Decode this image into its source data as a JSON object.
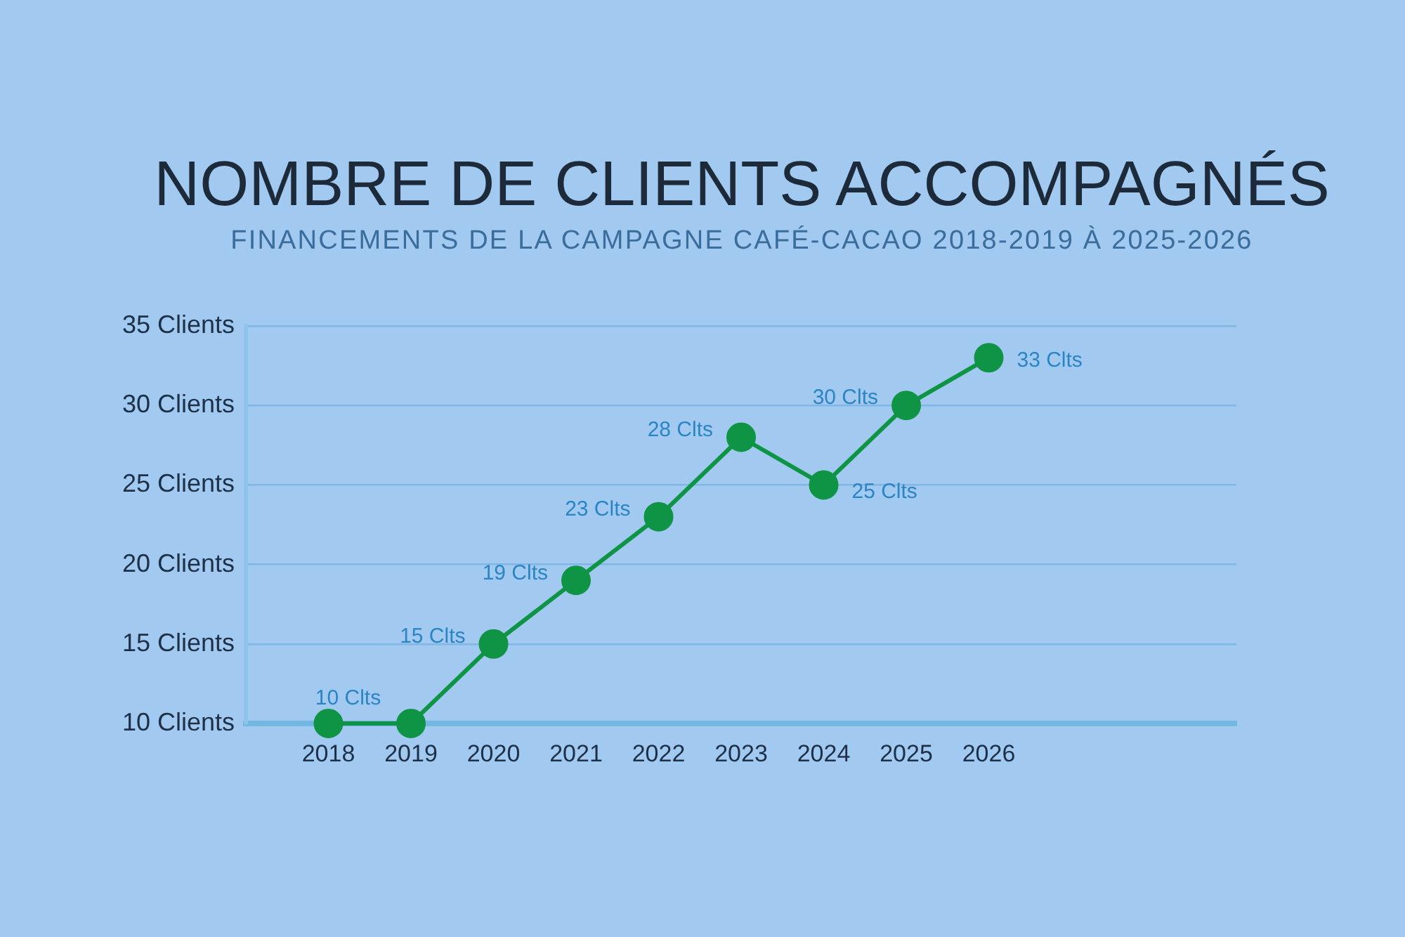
{
  "chart_data": {
    "type": "line",
    "title": "NOMBRE DE CLIENTS ACCOMPAGNÉS",
    "subtitle": "FINANCEMENTS DE LA CAMPAGNE CAFÉ-CACAO 2018-2019 À 2025-2026",
    "x": [
      2018,
      2019,
      2020,
      2021,
      2022,
      2023,
      2024,
      2025,
      2026
    ],
    "series": [
      {
        "color": "#0f9445",
        "values": [
          10,
          10,
          15,
          19,
          23,
          28,
          25,
          30,
          33
        ],
        "value_labels": [
          "10 Clts",
          null,
          "15 Clts",
          "19 Clts",
          "23 Clts",
          "28 Clts",
          "25 Clts",
          "30 Clts",
          "33 Clts"
        ]
      }
    ],
    "xlim": [
      2017,
      2029
    ],
    "xticks": [
      2018,
      2019,
      2020,
      2021,
      2022,
      2023,
      2024,
      2025,
      2026
    ],
    "ylim": [
      10,
      35
    ],
    "yticks": [
      {
        "value": 10,
        "label": "10 Clients"
      },
      {
        "value": 15,
        "label": "15 Clients"
      },
      {
        "value": 20,
        "label": "20 Clients"
      },
      {
        "value": 25,
        "label": "25 Clients"
      },
      {
        "value": 30,
        "label": "30 Clients"
      },
      {
        "value": 35,
        "label": "35 Clients"
      }
    ],
    "grid": "y",
    "marker": "circle",
    "line_style": "solid"
  }
}
